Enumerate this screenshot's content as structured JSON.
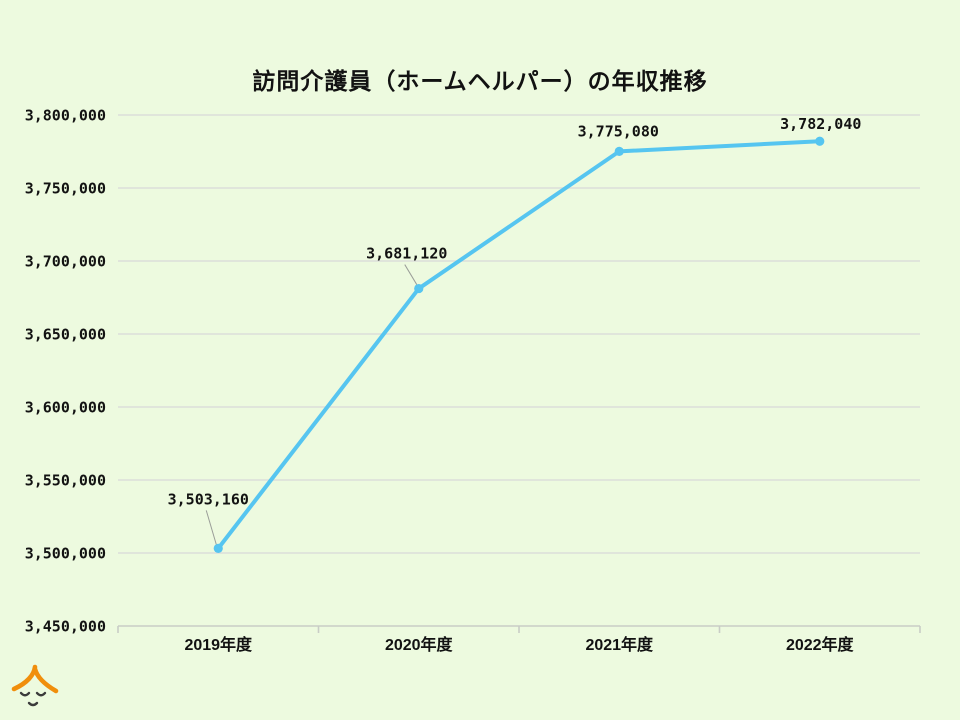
{
  "page": {
    "background_color": "#EDFADF",
    "text_color": "#121212"
  },
  "chart_data": {
    "type": "line",
    "title": "訪問介護員（ホームヘルパー）の年収推移",
    "categories": [
      "2019年度",
      "2020年度",
      "2021年度",
      "2022年度"
    ],
    "series": [
      {
        "name": "年収",
        "values": [
          3503160,
          3681120,
          3775080,
          3782040
        ],
        "point_labels": [
          "3,503,160",
          "3,681,120",
          "3,775,080",
          "3,782,040"
        ],
        "color": "#56C5F0"
      }
    ],
    "xlabel": "",
    "ylabel": "",
    "ylim": [
      3450000,
      3800000
    ],
    "y_tick_step": 50000,
    "y_tick_labels": [
      "3,450,000",
      "3,500,000",
      "3,550,000",
      "3,600,000",
      "3,650,000",
      "3,700,000",
      "3,750,000",
      "3,800,000"
    ],
    "grid": "horizontal",
    "legend_position": "none",
    "gridline_color": "#DCDEDA",
    "axis_line_color": "#C9CDC6",
    "leader_line_color": "#9A9D98",
    "marker": "circle"
  },
  "logo": {
    "name": "smiling face under orange roof mascot",
    "roof_color": "#F08E0C",
    "face_color": "#3B3B3B"
  }
}
